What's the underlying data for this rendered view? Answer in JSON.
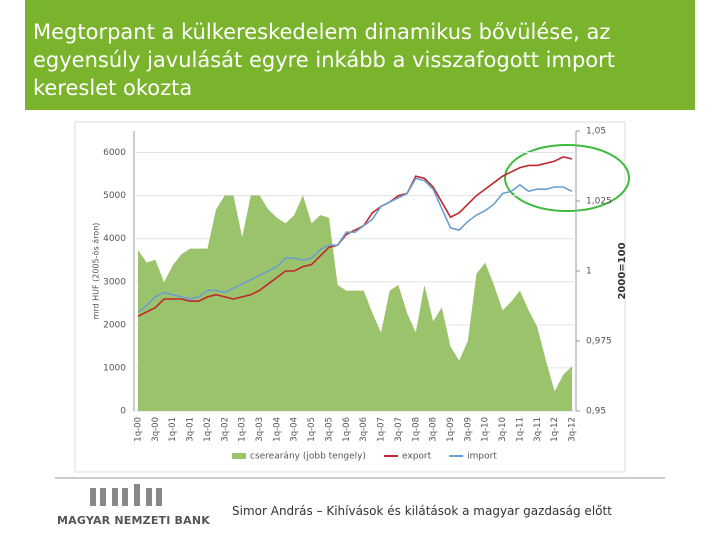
{
  "header": {
    "title": "Megtorpant a külkereskedelem dinamikus bővülése, az egyensúly javulását egyre inkább a visszafogott import kereslet okozta"
  },
  "chart_data": {
    "type": "line",
    "ylabel": "mrd HUF (2005-ös áron)",
    "y2label": "2000=100",
    "categories": [
      "1q-00",
      null,
      "3q-00",
      null,
      "1q-01",
      null,
      "3q-01",
      null,
      "1q-02",
      null,
      "3q-02",
      null,
      "1q-03",
      null,
      "3q-03",
      null,
      "1q-04",
      null,
      "3q-04",
      null,
      "1q-05",
      null,
      "3q-05",
      null,
      "1q-06",
      null,
      "3q-06",
      null,
      "1q-07",
      null,
      "3q-07",
      null,
      "1q-08",
      null,
      "3q-08",
      null,
      "1q-09",
      null,
      "3q-09",
      null,
      "1q-10",
      null,
      "3q-10",
      null,
      "1q-11",
      null,
      "3q-11",
      null,
      "1q-12",
      null,
      "3q-12"
    ],
    "series": [
      {
        "name": "cserearány (jobb tengely)",
        "type": "area",
        "axis": "y2",
        "color": "#9bc36b",
        "values": [
          1.0075,
          1.003,
          1.004,
          0.996,
          1.002,
          1.006,
          1.008,
          1.008,
          1.008,
          1.022,
          1.027,
          1.027,
          1.012,
          1.027,
          1.027,
          1.022,
          1.019,
          1.017,
          1.02,
          1.027,
          1.017,
          1.02,
          1.019,
          0.995,
          0.993,
          0.993,
          0.993,
          0.985,
          0.978,
          0.993,
          0.995,
          0.985,
          0.978,
          0.995,
          0.982,
          0.987,
          0.973,
          0.968,
          0.975,
          0.999,
          1.003,
          0.995,
          0.986,
          0.989,
          0.993,
          0.986,
          0.98,
          0.968,
          0.957,
          0.963,
          0.966
        ]
      },
      {
        "name": "export",
        "type": "line",
        "color": "#c0282d",
        "values": [
          2200,
          2300,
          2400,
          2600,
          2600,
          2600,
          2550,
          2550,
          2650,
          2700,
          2650,
          2600,
          2650,
          2700,
          2800,
          2950,
          3100,
          3250,
          3250,
          3350,
          3400,
          3600,
          3800,
          3850,
          4100,
          4200,
          4300,
          4600,
          4750,
          4850,
          5000,
          5050,
          5450,
          5400,
          5200,
          4850,
          4500,
          4600,
          4800,
          5000,
          5150,
          5300,
          5450,
          5550,
          5650,
          5700,
          5700,
          5750,
          5800,
          5900,
          5850
        ]
      },
      {
        "name": "import",
        "type": "line",
        "color": "#6a9fcf",
        "values": [
          2300,
          2450,
          2650,
          2750,
          2700,
          2650,
          2600,
          2650,
          2800,
          2800,
          2750,
          2850,
          2950,
          3050,
          3150,
          3250,
          3350,
          3550,
          3550,
          3500,
          3550,
          3750,
          3850,
          3850,
          4150,
          4150,
          4300,
          4450,
          4750,
          4850,
          4950,
          5050,
          5400,
          5350,
          5150,
          4700,
          4250,
          4200,
          4400,
          4550,
          4650,
          4800,
          5050,
          5100,
          5250,
          5100,
          5150,
          5150,
          5200,
          5200,
          5100
        ]
      }
    ],
    "ylim": [
      0,
      6500
    ],
    "yticks": [
      0,
      1000,
      2000,
      3000,
      4000,
      5000,
      6000
    ],
    "y2lim": [
      0.95,
      1.05
    ],
    "y2ticks": [
      {
        "value": 0.95,
        "label": "0,95"
      },
      {
        "value": 0.975,
        "label": "0,975"
      },
      1,
      {
        "value": 1.025,
        "label": "1,025"
      },
      {
        "value": 1.05,
        "label": "1,05"
      }
    ],
    "grid": true,
    "legend": "bottom"
  },
  "footer": {
    "text": "Simor András – Kihívások és kilátások a magyar gazdaság előtt",
    "logo": "MAGYAR NEMZETI BANK"
  }
}
